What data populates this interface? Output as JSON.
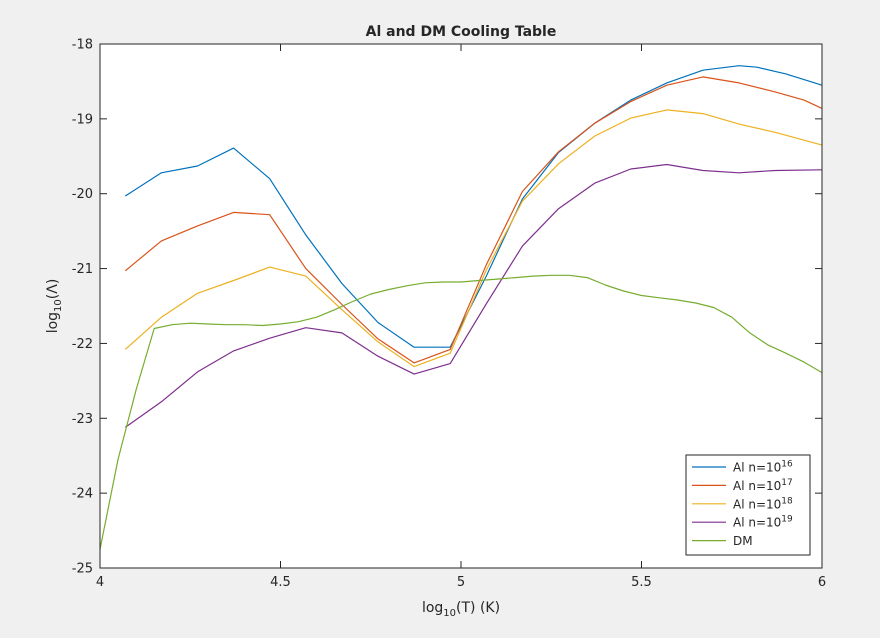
{
  "chart_data": {
    "type": "line",
    "title": "Al and DM Cooling Table",
    "xlabel": {
      "pre": "log",
      "sub": "10",
      "post": "(T) (K)"
    },
    "ylabel": {
      "pre": "log",
      "sub": "10",
      "post": "(Λ)"
    },
    "xlim": [
      4,
      6
    ],
    "ylim": [
      -25,
      -18
    ],
    "xticks": [
      4,
      4.5,
      5,
      5.5,
      6
    ],
    "xtick_labels": [
      "4",
      "4.5",
      "5",
      "5.5",
      "6"
    ],
    "yticks": [
      -25,
      -24,
      -23,
      -22,
      -21,
      -20,
      -19,
      -18
    ],
    "ytick_labels": [
      "-25",
      "-24",
      "-23",
      "-22",
      "-21",
      "-20",
      "-19",
      "-18"
    ],
    "grid": false,
    "legend_position": "bottom-right",
    "series": [
      {
        "name": "Al n=10^16",
        "legend": {
          "pre": "Al n=10",
          "sup": "16"
        },
        "color": "#0072bd",
        "x": [
          4.07,
          4.17,
          4.27,
          4.37,
          4.47,
          4.57,
          4.67,
          4.77,
          4.87,
          4.97,
          5.07,
          5.17,
          5.27,
          5.37,
          5.47,
          5.57,
          5.67,
          5.77,
          5.82,
          5.9,
          6.0
        ],
        "y": [
          -20.03,
          -19.72,
          -19.63,
          -19.39,
          -19.8,
          -20.55,
          -21.2,
          -21.72,
          -22.05,
          -22.05,
          -21.1,
          -20.07,
          -19.45,
          -19.06,
          -18.75,
          -18.52,
          -18.35,
          -18.29,
          -18.31,
          -18.4,
          -18.55
        ]
      },
      {
        "name": "Al n=10^17",
        "legend": {
          "pre": "Al n=10",
          "sup": "17"
        },
        "color": "#d95319",
        "x": [
          4.07,
          4.17,
          4.27,
          4.37,
          4.47,
          4.57,
          4.67,
          4.77,
          4.87,
          4.97,
          5.07,
          5.17,
          5.27,
          5.37,
          5.47,
          5.57,
          5.67,
          5.77,
          5.87,
          5.95,
          6.0
        ],
        "y": [
          -21.03,
          -20.63,
          -20.43,
          -20.25,
          -20.28,
          -21.0,
          -21.48,
          -21.94,
          -22.26,
          -22.08,
          -20.95,
          -19.97,
          -19.44,
          -19.06,
          -18.77,
          -18.55,
          -18.44,
          -18.52,
          -18.64,
          -18.75,
          -18.86
        ]
      },
      {
        "name": "Al n=10^18",
        "legend": {
          "pre": "Al n=10",
          "sup": "18"
        },
        "color": "#edb120",
        "x": [
          4.07,
          4.17,
          4.27,
          4.37,
          4.47,
          4.57,
          4.67,
          4.77,
          4.87,
          4.97,
          5.07,
          5.17,
          5.27,
          5.37,
          5.47,
          5.57,
          5.67,
          5.77,
          5.87,
          6.0
        ],
        "y": [
          -22.08,
          -21.65,
          -21.33,
          -21.16,
          -20.98,
          -21.1,
          -21.55,
          -21.98,
          -22.31,
          -22.13,
          -21.02,
          -20.1,
          -19.6,
          -19.23,
          -18.99,
          -18.88,
          -18.93,
          -19.07,
          -19.18,
          -19.35
        ]
      },
      {
        "name": "Al n=10^19",
        "legend": {
          "pre": "Al n=10",
          "sup": "19"
        },
        "color": "#7e2f8e",
        "x": [
          4.07,
          4.17,
          4.27,
          4.37,
          4.47,
          4.57,
          4.67,
          4.77,
          4.87,
          4.97,
          5.07,
          5.17,
          5.27,
          5.37,
          5.47,
          5.57,
          5.67,
          5.77,
          5.87,
          6.0
        ],
        "y": [
          -23.12,
          -22.78,
          -22.38,
          -22.1,
          -21.93,
          -21.79,
          -21.86,
          -22.17,
          -22.41,
          -22.27,
          -21.47,
          -20.7,
          -20.2,
          -19.86,
          -19.67,
          -19.61,
          -19.69,
          -19.72,
          -19.69,
          -19.68
        ]
      },
      {
        "name": "DM",
        "legend": {
          "pre": "DM",
          "sup": ""
        },
        "color": "#77ac30",
        "x": [
          4.0,
          4.05,
          4.1,
          4.15,
          4.2,
          4.25,
          4.3,
          4.35,
          4.4,
          4.45,
          4.5,
          4.55,
          4.6,
          4.65,
          4.7,
          4.75,
          4.8,
          4.85,
          4.9,
          4.95,
          5.0,
          5.05,
          5.1,
          5.15,
          5.2,
          5.25,
          5.3,
          5.35,
          5.4,
          5.45,
          5.5,
          5.55,
          5.6,
          5.65,
          5.7,
          5.75,
          5.8,
          5.85,
          5.9,
          5.95,
          6.0
        ],
        "y": [
          -24.75,
          -23.55,
          -22.62,
          -21.8,
          -21.75,
          -21.73,
          -21.74,
          -21.75,
          -21.75,
          -21.76,
          -21.74,
          -21.71,
          -21.65,
          -21.55,
          -21.44,
          -21.34,
          -21.28,
          -21.23,
          -21.19,
          -21.18,
          -21.18,
          -21.16,
          -21.14,
          -21.12,
          -21.1,
          -21.09,
          -21.09,
          -21.12,
          -21.22,
          -21.3,
          -21.36,
          -21.39,
          -21.42,
          -21.46,
          -21.52,
          -21.65,
          -21.86,
          -22.02,
          -22.13,
          -22.25,
          -22.39
        ]
      }
    ]
  }
}
